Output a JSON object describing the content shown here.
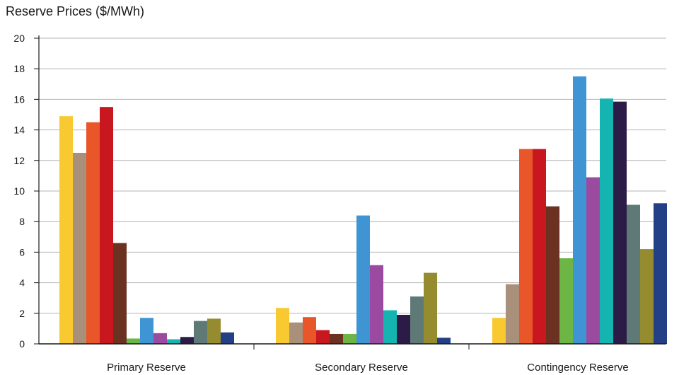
{
  "chart_data": {
    "type": "bar",
    "title": "Reserve Prices ($/MWh)",
    "xlabel": "",
    "ylabel": "",
    "ylim": [
      0,
      20
    ],
    "yticks": [
      0,
      2,
      4,
      6,
      8,
      10,
      12,
      14,
      16,
      18,
      20
    ],
    "grid": true,
    "legend": "none",
    "categories": [
      "Primary Reserve",
      "Secondary Reserve",
      "Contingency Reserve"
    ],
    "colors": [
      "#f9c932",
      "#a8907a",
      "#e8562a",
      "#c8171e",
      "#6b3221",
      "#6db545",
      "#3f95d3",
      "#9b4b9f",
      "#14b5b0",
      "#2d1b47",
      "#5f7a76",
      "#958c30",
      "#233f86"
    ],
    "groups": [
      {
        "values": [
          14.9,
          12.5,
          14.5,
          15.5,
          6.6,
          0.35,
          1.7,
          0.7,
          0.3,
          0.45,
          1.5,
          1.65,
          0.75
        ]
      },
      {
        "values": [
          2.35,
          1.4,
          1.75,
          0.9,
          0.65,
          0.65,
          8.4,
          5.15,
          2.2,
          1.9,
          3.1,
          4.65,
          0.4
        ]
      },
      {
        "values": [
          1.7,
          3.9,
          12.75,
          12.75,
          9.0,
          5.6,
          17.5,
          10.9,
          16.05,
          15.85,
          9.1,
          6.2,
          9.2
        ]
      }
    ]
  }
}
